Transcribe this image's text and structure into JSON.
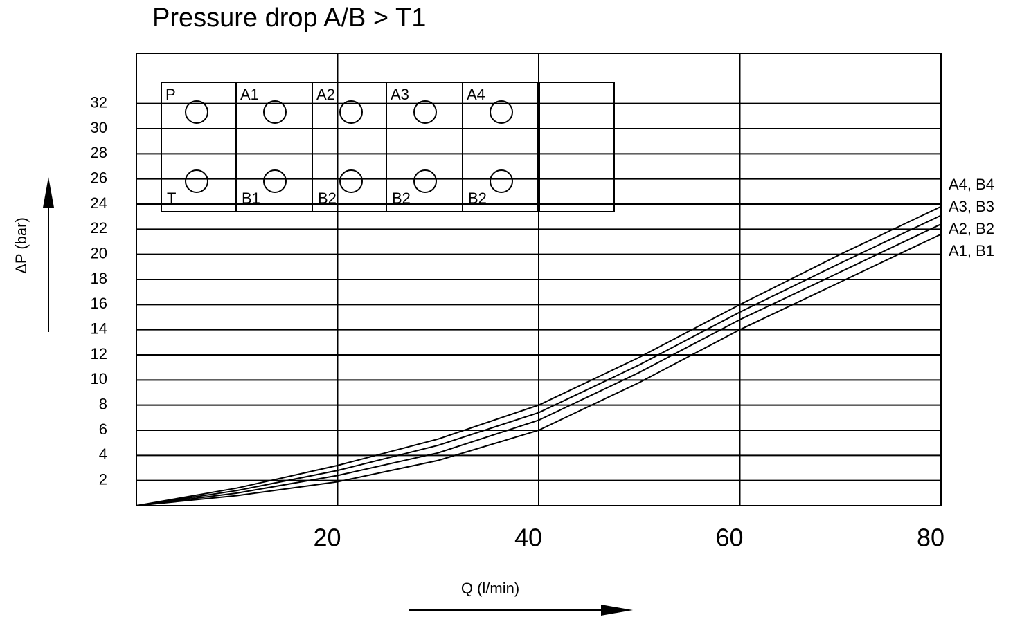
{
  "chart_data": {
    "type": "line",
    "title": "Pressure drop A/B > T1",
    "ylabel": "ΔP (bar)",
    "xlabel": "Q (l/min)",
    "x": [
      0,
      10,
      20,
      30,
      40,
      50,
      60,
      70,
      80
    ],
    "series": [
      {
        "name": "A4, B4",
        "color": "#000000",
        "values": [
          0,
          1.4,
          3.2,
          5.3,
          8,
          11.8,
          16,
          20,
          23.8
        ]
      },
      {
        "name": "A3, B3",
        "color": "#000000",
        "values": [
          0,
          1.2,
          2.8,
          4.8,
          7.4,
          11.2,
          15.4,
          19.3,
          23.1
        ]
      },
      {
        "name": "A2, B2",
        "color": "#000000",
        "values": [
          0,
          1,
          2.4,
          4.2,
          6.8,
          10.6,
          14.8,
          18.6,
          22.4
        ]
      },
      {
        "name": "A1, B1",
        "color": "#000000",
        "values": [
          0,
          0.8,
          1.9,
          3.6,
          6,
          9.8,
          14,
          17.8,
          21.6
        ]
      }
    ],
    "xlim": [
      0,
      80
    ],
    "xticks": [
      20,
      40,
      60,
      80
    ],
    "ylim": [
      0,
      36
    ],
    "yticks": [
      2,
      4,
      6,
      8,
      10,
      12,
      14,
      16,
      18,
      20,
      22,
      24,
      26,
      28,
      30,
      32
    ],
    "grid": true,
    "port_labels_top": [
      "P",
      "A1",
      "A2",
      "A3",
      "A4"
    ],
    "port_labels_bottom": [
      "T",
      "B1",
      "B2",
      "B2",
      "B2"
    ]
  }
}
